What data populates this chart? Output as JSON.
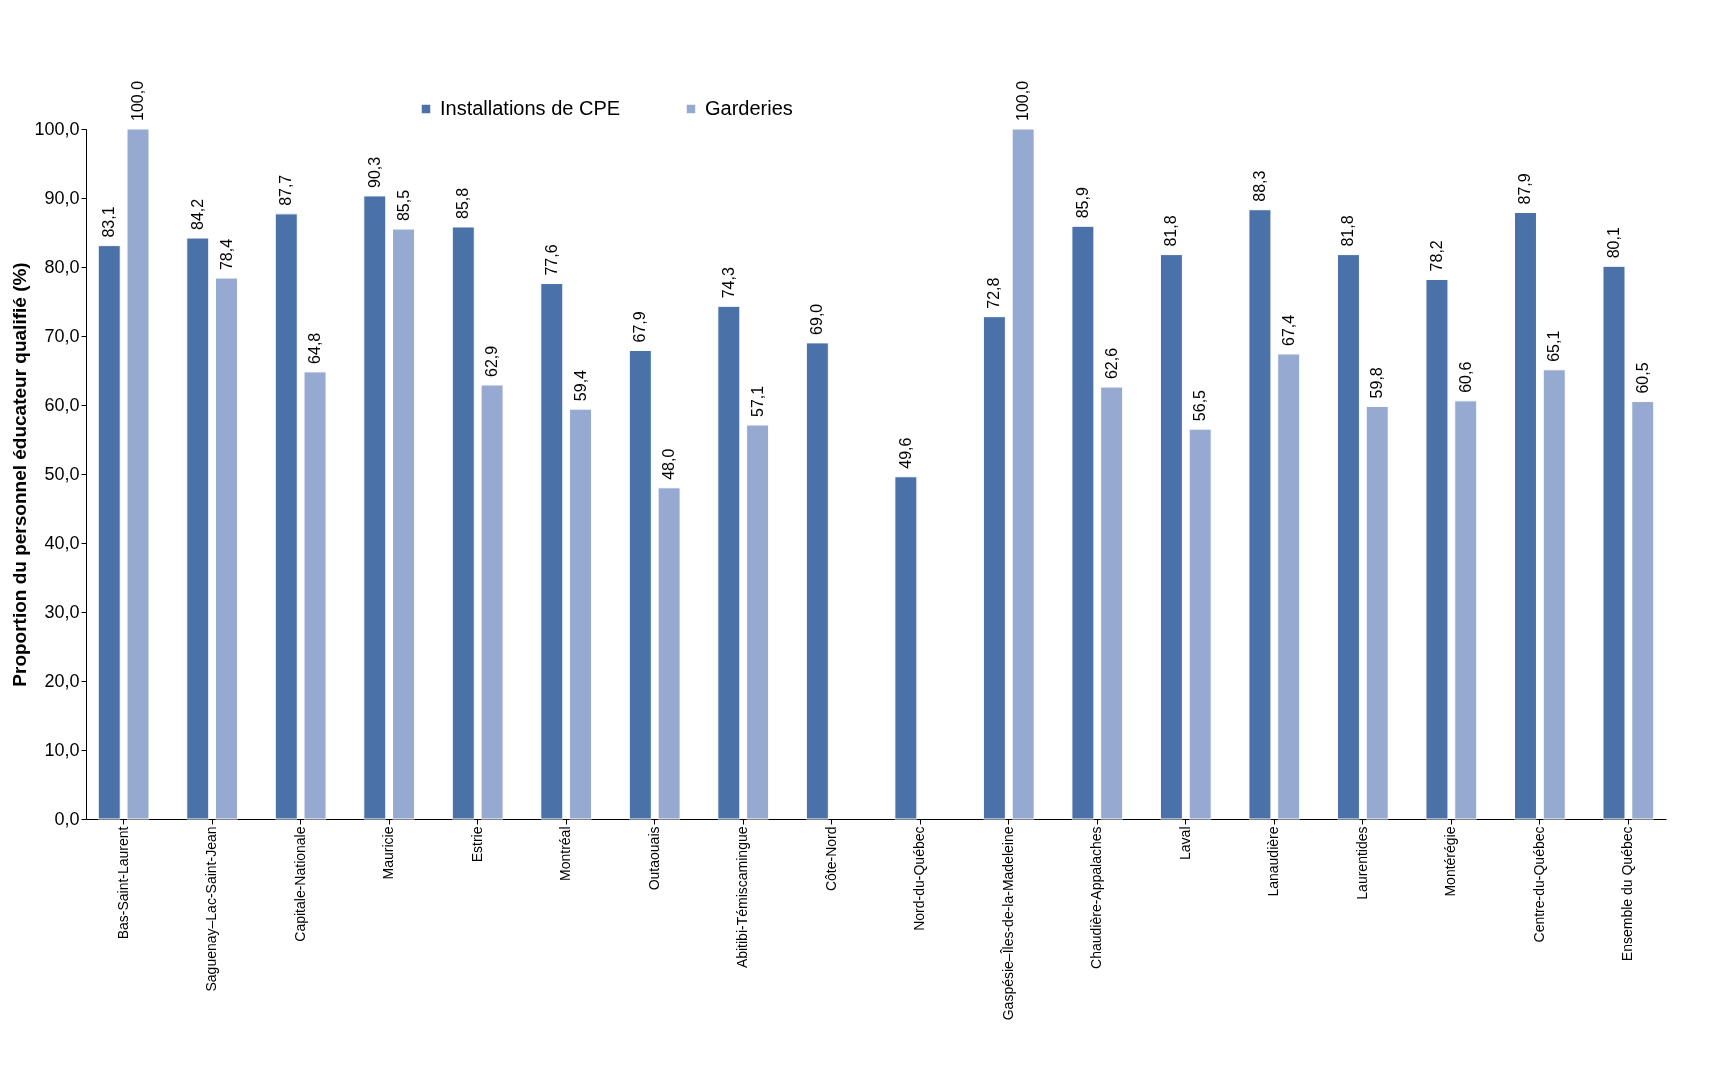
{
  "chart_data": {
    "type": "bar",
    "ylabel": "Proportion du personnel éducateur qualifié (%)",
    "categories": [
      "Bas-Saint-Laurent",
      "Saguenay–Lac-Saint-Jean",
      "Capitale-Nationale",
      "Mauricie",
      "Estrie",
      "Montréal",
      "Outaouais",
      "Abitibi-Témiscamingue",
      "Côte-Nord",
      "Nord-du-Québec",
      "Gaspésie–Îles-de-la-Madeleine",
      "Chaudière-Appalaches",
      "Laval",
      "Lanaudière",
      "Laurentides",
      "Montérégie",
      "Centre-du-Québec",
      "Ensemble du Québec"
    ],
    "series": [
      {
        "name": "Installations de CPE",
        "color": "#4a72a8",
        "values": [
          83.1,
          84.2,
          87.7,
          90.3,
          85.8,
          77.6,
          67.9,
          74.3,
          69.0,
          49.6,
          72.8,
          85.9,
          81.8,
          88.3,
          81.8,
          78.2,
          87.9,
          80.1
        ],
        "value_labels": [
          "83,1",
          "84,2",
          "87,7",
          "90,3",
          "85,8",
          "77,6",
          "67,9",
          "74,3",
          "69,0",
          "49,6",
          "72,8",
          "85,9",
          "81,8",
          "88,3",
          "81,8",
          "78,2",
          "87,9",
          "80,1"
        ]
      },
      {
        "name": "Garderies",
        "color": "#95a9d1",
        "values": [
          100.0,
          78.4,
          64.8,
          85.5,
          62.9,
          59.4,
          48.0,
          57.1,
          null,
          null,
          100.0,
          62.6,
          56.5,
          67.4,
          59.8,
          60.6,
          65.1,
          60.5
        ],
        "value_labels": [
          "100,0",
          "78,4",
          "64,8",
          "85,5",
          "62,9",
          "59,4",
          "48,0",
          "57,1",
          null,
          null,
          "100,0",
          "62,6",
          "56,5",
          "67,4",
          "59,8",
          "60,6",
          "65,1",
          "60,5"
        ]
      }
    ],
    "ylim": [
      0,
      100
    ],
    "yticks": [
      {
        "value": 0,
        "label": "0,0"
      },
      {
        "value": 10,
        "label": "10,0"
      },
      {
        "value": 20,
        "label": "20,0"
      },
      {
        "value": 30,
        "label": "30,0"
      },
      {
        "value": 40,
        "label": "40,0"
      },
      {
        "value": 50,
        "label": "50,0"
      },
      {
        "value": 60,
        "label": "60,0"
      },
      {
        "value": 70,
        "label": "70,0"
      },
      {
        "value": 80,
        "label": "80,0"
      },
      {
        "value": 90,
        "label": "90,0"
      },
      {
        "value": 100,
        "label": "100,0"
      }
    ],
    "grid": false,
    "legend": "top"
  }
}
